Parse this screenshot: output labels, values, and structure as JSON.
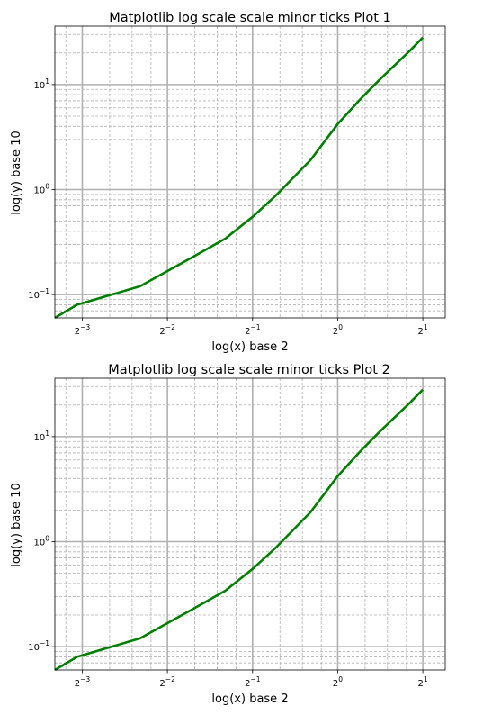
{
  "colors": {
    "series": "#008000",
    "major_grid": "#b0b0b0",
    "minor_grid": "#b0b0b0",
    "axes": "#000000",
    "background": "#ffffff"
  },
  "chart_data": [
    {
      "type": "line",
      "title": "Matplotlib log scale scale minor ticks Plot 1",
      "xlabel": "log(x) base 2",
      "ylabel": "log(y) base 10",
      "xscale": "log2",
      "yscale": "log10",
      "xlim": [
        0.1,
        2.4
      ],
      "ylim": [
        0.06,
        36
      ],
      "grid": {
        "major": "solid",
        "minor": "dashed"
      },
      "x_ticks": [
        {
          "value": 0.125,
          "base": "2",
          "exp": "−3"
        },
        {
          "value": 0.25,
          "base": "2",
          "exp": "−2"
        },
        {
          "value": 0.5,
          "base": "2",
          "exp": "−1"
        },
        {
          "value": 1,
          "base": "2",
          "exp": "0"
        },
        {
          "value": 2,
          "base": "2",
          "exp": "1"
        }
      ],
      "y_ticks": [
        {
          "value": 0.1,
          "base": "10",
          "exp": "−1"
        },
        {
          "value": 1,
          "base": "10",
          "exp": "0"
        },
        {
          "value": 10,
          "base": "10",
          "exp": "1"
        }
      ],
      "series": [
        {
          "x": [
            0.1,
            0.11,
            0.12,
            0.2,
            0.3,
            0.4,
            0.5,
            0.6,
            0.8,
            1.0,
            1.2,
            1.4,
            1.6,
            1.8,
            2.0
          ],
          "y": [
            0.06,
            0.07,
            0.08,
            0.12,
            0.22,
            0.34,
            0.55,
            0.86,
            1.9,
            4.2,
            7.2,
            11.0,
            15.5,
            21.0,
            28.0
          ]
        }
      ]
    },
    {
      "type": "line",
      "title": "Matplotlib log scale scale minor ticks Plot 2",
      "xlabel": "log(x) base 2",
      "ylabel": "log(y) base 10",
      "xscale": "log2",
      "yscale": "log10",
      "xlim": [
        0.1,
        2.4
      ],
      "ylim": [
        0.06,
        36
      ],
      "grid": {
        "major": "solid",
        "minor": "dashed"
      },
      "x_ticks": [
        {
          "value": 0.125,
          "base": "2",
          "exp": "−3"
        },
        {
          "value": 0.25,
          "base": "2",
          "exp": "−2"
        },
        {
          "value": 0.5,
          "base": "2",
          "exp": "−1"
        },
        {
          "value": 1,
          "base": "2",
          "exp": "0"
        },
        {
          "value": 2,
          "base": "2",
          "exp": "1"
        }
      ],
      "y_ticks": [
        {
          "value": 0.1,
          "base": "10",
          "exp": "−1"
        },
        {
          "value": 1,
          "base": "10",
          "exp": "0"
        },
        {
          "value": 10,
          "base": "10",
          "exp": "1"
        }
      ],
      "series": [
        {
          "x": [
            0.1,
            0.11,
            0.12,
            0.2,
            0.3,
            0.4,
            0.5,
            0.6,
            0.8,
            1.0,
            1.2,
            1.4,
            1.6,
            1.8,
            2.0
          ],
          "y": [
            0.06,
            0.07,
            0.08,
            0.12,
            0.22,
            0.34,
            0.55,
            0.86,
            1.9,
            4.2,
            7.2,
            11.0,
            15.5,
            21.0,
            28.0
          ]
        }
      ]
    }
  ]
}
